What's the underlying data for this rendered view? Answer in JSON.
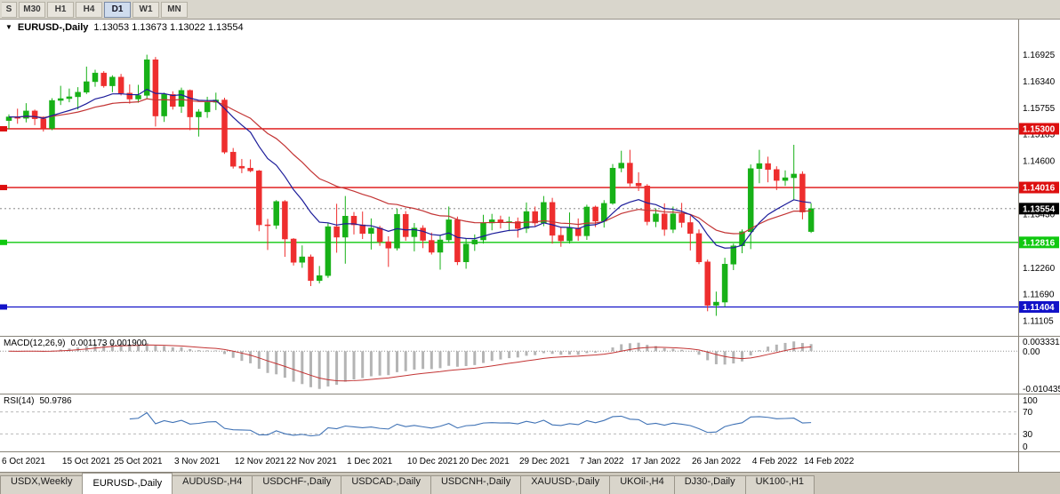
{
  "toolbar": {
    "timeframes": [
      {
        "label": "S",
        "active": false,
        "partial": true
      },
      {
        "label": "M30",
        "active": false
      },
      {
        "label": "H1",
        "active": false
      },
      {
        "label": "H4",
        "active": false
      },
      {
        "label": "D1",
        "active": true
      },
      {
        "label": "W1",
        "active": false
      },
      {
        "label": "MN",
        "active": false
      }
    ]
  },
  "chart": {
    "title": "EURUSD-,Daily",
    "ohlc_text": "1.13053 1.13673 1.13022 1.13554"
  },
  "chart_data": {
    "type": "candlestick",
    "symbol": "EURUSD-",
    "timeframe": "Daily",
    "current": {
      "open": 1.13053,
      "high": 1.13673,
      "low": 1.13022,
      "close": 1.13554
    },
    "y_range": {
      "min": 1.1085,
      "max": 1.1765
    },
    "grid": false,
    "y_axis_ticks": [
      "1.16925",
      "1.16340",
      "1.15755",
      "1.15185",
      "1.14600",
      "1.13430",
      "1.12260",
      "1.11690",
      "1.11105"
    ],
    "levels": [
      {
        "price": 1.153,
        "label": "1.15300",
        "color": "#dd0f0f"
      },
      {
        "price": 1.14016,
        "label": "1.14016",
        "color": "#dd0f0f"
      },
      {
        "price": 1.12816,
        "label": "1.12816",
        "color": "#0fc80f"
      },
      {
        "price": 1.11404,
        "label": "1.11404",
        "color": "#1212c8"
      }
    ],
    "current_price": {
      "price": 1.13554,
      "label": "1.13554",
      "color": "#000000"
    },
    "colors": {
      "up": "#17b117",
      "down": "#ee2e2e",
      "background": "#ffffff"
    },
    "date_labels": [
      {
        "text": "6 Oct 2021",
        "index": 0
      },
      {
        "text": "15 Oct 2021",
        "index": 7
      },
      {
        "text": "25 Oct 2021",
        "index": 13
      },
      {
        "text": "3 Nov 2021",
        "index": 20
      },
      {
        "text": "12 Nov 2021",
        "index": 27
      },
      {
        "text": "22 Nov 2021",
        "index": 33
      },
      {
        "text": "1 Dec 2021",
        "index": 40
      },
      {
        "text": "10 Dec 2021",
        "index": 47
      },
      {
        "text": "20 Dec 2021",
        "index": 53
      },
      {
        "text": "29 Dec 2021",
        "index": 60
      },
      {
        "text": "7 Jan 2022",
        "index": 67
      },
      {
        "text": "17 Jan 2022",
        "index": 73
      },
      {
        "text": "26 Jan 2022",
        "index": 80
      },
      {
        "text": "4 Feb 2022",
        "index": 87
      },
      {
        "text": "14 Feb 2022",
        "index": 93
      }
    ],
    "candles": [
      [
        1.1548,
        1.15615,
        1.1529,
        1.1556
      ],
      [
        1.1556,
        1.1574,
        1.1541,
        1.1553
      ],
      [
        1.1553,
        1.1586,
        1.1544,
        1.1569
      ],
      [
        1.1569,
        1.1572,
        1.1538,
        1.1552
      ],
      [
        1.1552,
        1.1557,
        1.1524,
        1.1531
      ],
      [
        1.1531,
        1.1597,
        1.1527,
        1.1592
      ],
      [
        1.1592,
        1.1624,
        1.1582,
        1.1596
      ],
      [
        1.1596,
        1.1618,
        1.1588,
        1.16
      ],
      [
        1.16,
        1.1621,
        1.1572,
        1.161
      ],
      [
        1.161,
        1.1666,
        1.1606,
        1.1633
      ],
      [
        1.1633,
        1.1659,
        1.1622,
        1.1652
      ],
      [
        1.1652,
        1.1656,
        1.162,
        1.1624
      ],
      [
        1.1624,
        1.1647,
        1.161,
        1.1643
      ],
      [
        1.1643,
        1.165,
        1.1603,
        1.1608
      ],
      [
        1.1608,
        1.1627,
        1.1585,
        1.1595
      ],
      [
        1.1595,
        1.1626,
        1.1587,
        1.1603
      ],
      [
        1.1603,
        1.1692,
        1.1596,
        1.1681
      ],
      [
        1.1681,
        1.1687,
        1.1535,
        1.1558
      ],
      [
        1.1558,
        1.1609,
        1.1545,
        1.1605
      ],
      [
        1.1605,
        1.1612,
        1.1572,
        1.1579
      ],
      [
        1.1579,
        1.162,
        1.1565,
        1.1614
      ],
      [
        1.1614,
        1.1616,
        1.1527,
        1.1556
      ],
      [
        1.1556,
        1.1573,
        1.1513,
        1.1567
      ],
      [
        1.1567,
        1.16,
        1.1554,
        1.1588
      ],
      [
        1.1588,
        1.1609,
        1.1571,
        1.1593
      ],
      [
        1.1593,
        1.1598,
        1.1475,
        1.1479
      ],
      [
        1.1479,
        1.1488,
        1.1443,
        1.1448
      ],
      [
        1.1448,
        1.1464,
        1.1433,
        1.1444
      ],
      [
        1.1444,
        1.1463,
        1.1435,
        1.1438
      ],
      [
        1.1438,
        1.144,
        1.1306,
        1.132
      ],
      [
        1.132,
        1.1333,
        1.1265,
        1.1319
      ],
      [
        1.1319,
        1.1374,
        1.1311,
        1.1371
      ],
      [
        1.1371,
        1.1374,
        1.125,
        1.1289
      ],
      [
        1.1289,
        1.1291,
        1.1231,
        1.1238
      ],
      [
        1.1238,
        1.1275,
        1.1226,
        1.125
      ],
      [
        1.125,
        1.1255,
        1.1186,
        1.1198
      ],
      [
        1.1198,
        1.123,
        1.1192,
        1.1209
      ],
      [
        1.1209,
        1.1325,
        1.1204,
        1.1316
      ],
      [
        1.1316,
        1.1366,
        1.1259,
        1.1293
      ],
      [
        1.1293,
        1.1383,
        1.1235,
        1.1339
      ],
      [
        1.1339,
        1.1348,
        1.1299,
        1.132
      ],
      [
        1.132,
        1.1349,
        1.1289,
        1.1301
      ],
      [
        1.1301,
        1.1334,
        1.1266,
        1.1313
      ],
      [
        1.1313,
        1.1318,
        1.1274,
        1.1283
      ],
      [
        1.1283,
        1.1295,
        1.1228,
        1.1269
      ],
      [
        1.1269,
        1.1355,
        1.1264,
        1.1343
      ],
      [
        1.1343,
        1.135,
        1.1285,
        1.1294
      ],
      [
        1.1294,
        1.1324,
        1.1262,
        1.1313
      ],
      [
        1.1313,
        1.1319,
        1.1269,
        1.1286
      ],
      [
        1.1286,
        1.1303,
        1.1255,
        1.126
      ],
      [
        1.126,
        1.1298,
        1.1222,
        1.1287
      ],
      [
        1.1287,
        1.136,
        1.1281,
        1.1331
      ],
      [
        1.1331,
        1.1338,
        1.1232,
        1.1239
      ],
      [
        1.1239,
        1.129,
        1.1224,
        1.1278
      ],
      [
        1.1278,
        1.1299,
        1.1263,
        1.1287
      ],
      [
        1.1287,
        1.1342,
        1.1279,
        1.1324
      ],
      [
        1.1324,
        1.1344,
        1.1308,
        1.1331
      ],
      [
        1.1331,
        1.134,
        1.1312,
        1.1325
      ],
      [
        1.1325,
        1.1338,
        1.1306,
        1.1327
      ],
      [
        1.1327,
        1.1336,
        1.1292,
        1.1312
      ],
      [
        1.1312,
        1.1369,
        1.1302,
        1.1349
      ],
      [
        1.1349,
        1.136,
        1.1315,
        1.1324
      ],
      [
        1.1324,
        1.1383,
        1.1317,
        1.1369
      ],
      [
        1.1369,
        1.1379,
        1.1279,
        1.1297
      ],
      [
        1.1297,
        1.1315,
        1.1272,
        1.1285
      ],
      [
        1.1285,
        1.1347,
        1.1279,
        1.1313
      ],
      [
        1.1313,
        1.1334,
        1.1285,
        1.1296
      ],
      [
        1.1296,
        1.1364,
        1.1287,
        1.1359
      ],
      [
        1.1359,
        1.1362,
        1.1315,
        1.1328
      ],
      [
        1.1328,
        1.1374,
        1.1314,
        1.1367
      ],
      [
        1.1367,
        1.1453,
        1.1364,
        1.1444
      ],
      [
        1.1444,
        1.1482,
        1.1435,
        1.1455
      ],
      [
        1.1455,
        1.1484,
        1.1404,
        1.1411
      ],
      [
        1.1411,
        1.1435,
        1.1394,
        1.1405
      ],
      [
        1.1405,
        1.1409,
        1.1319,
        1.1327
      ],
      [
        1.1327,
        1.1356,
        1.1315,
        1.1344
      ],
      [
        1.1344,
        1.1367,
        1.1296,
        1.131
      ],
      [
        1.131,
        1.136,
        1.1302,
        1.1344
      ],
      [
        1.1344,
        1.1368,
        1.1314,
        1.1325
      ],
      [
        1.1325,
        1.134,
        1.1264,
        1.1301
      ],
      [
        1.1301,
        1.131,
        1.1234,
        1.1239
      ],
      [
        1.1239,
        1.1244,
        1.1131,
        1.1144
      ],
      [
        1.1144,
        1.1174,
        1.1121,
        1.1151
      ],
      [
        1.1151,
        1.1248,
        1.1141,
        1.1234
      ],
      [
        1.1234,
        1.1279,
        1.1221,
        1.1274
      ],
      [
        1.1274,
        1.131,
        1.1258,
        1.1305
      ],
      [
        1.1305,
        1.1452,
        1.1267,
        1.1443
      ],
      [
        1.1443,
        1.1484,
        1.1411,
        1.1454
      ],
      [
        1.1454,
        1.1469,
        1.1413,
        1.1441
      ],
      [
        1.1441,
        1.1448,
        1.1396,
        1.1417
      ],
      [
        1.1417,
        1.1439,
        1.1405,
        1.1423
      ],
      [
        1.1423,
        1.1495,
        1.1374,
        1.1431
      ],
      [
        1.1431,
        1.1437,
        1.1332,
        1.1348
      ],
      [
        1.13053,
        1.13673,
        1.13022,
        1.13554
      ]
    ],
    "indicators": {
      "ma_fast": {
        "period": 12,
        "color": "#1c1c9a"
      },
      "ma_slow": {
        "period": 26,
        "color": "#c33434"
      },
      "macd": {
        "label": "MACD(12,26,9)",
        "values_text": "0.001173 0.001900",
        "fast": 12,
        "slow": 26,
        "signal": 9,
        "axis_labels": [
          "0.003331",
          "0.00",
          "-0.010435"
        ],
        "hist_color": "#b4b4b4",
        "signal_color": "#c33434"
      },
      "rsi": {
        "label": "RSI(14)",
        "value_text": "50.9786",
        "period": 14,
        "levels": [
          70,
          30
        ],
        "axis_labels": [
          "100",
          "70",
          "30",
          "0"
        ],
        "line_color": "#3f72b5"
      }
    }
  },
  "tabs": [
    {
      "label": "USDX,Weekly",
      "active": false
    },
    {
      "label": "EURUSD-,Daily",
      "active": true
    },
    {
      "label": "AUDUSD-,H4",
      "active": false
    },
    {
      "label": "USDCHF-,Daily",
      "active": false
    },
    {
      "label": "USDCAD-,Daily",
      "active": false
    },
    {
      "label": "USDCNH-,Daily",
      "active": false
    },
    {
      "label": "XAUUSD-,Daily",
      "active": false
    },
    {
      "label": "UKOil-,H4",
      "active": false
    },
    {
      "label": "DJ30-,Daily",
      "active": false
    },
    {
      "label": "UK100-,H1",
      "active": false
    }
  ]
}
